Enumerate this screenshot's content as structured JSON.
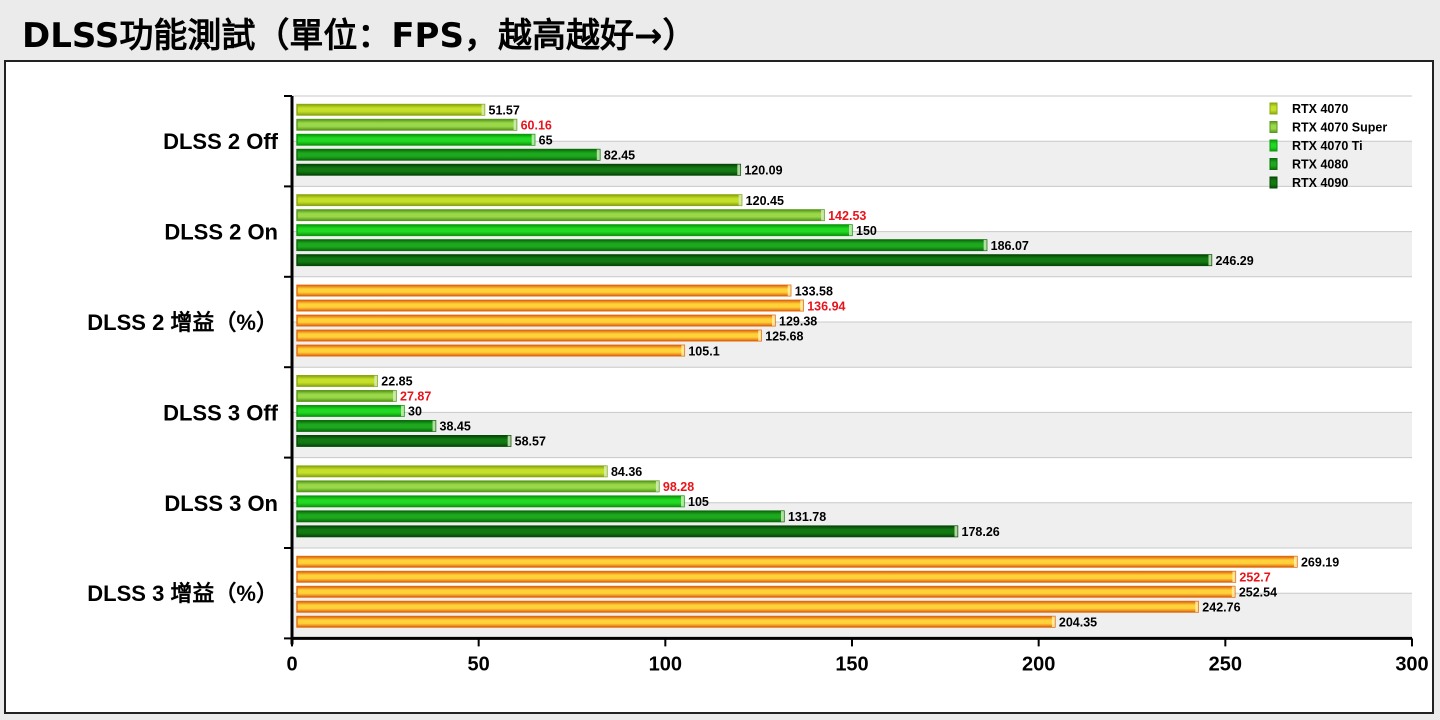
{
  "header": {
    "title": "DLSS功能測試（單位：FPS，越高越好→）"
  },
  "chart_data": {
    "type": "bar",
    "orientation": "horizontal",
    "title": "DLSS功能測試（單位：FPS，越高越好→）",
    "xlim": [
      0,
      300
    ],
    "xticks": [
      0,
      50,
      100,
      150,
      200,
      250,
      300
    ],
    "grid": "alternating horizontal bands",
    "legend_position": "top-right",
    "highlight_series": "RTX 4070 Super",
    "highlight_color": "#e8141b",
    "categories": [
      "DLSS 2 Off",
      "DLSS 2 On",
      "DLSS 2 增益（%）",
      "DLSS 3 Off",
      "DLSS 3 On",
      "DLSS 3 增益（%）"
    ],
    "gain_categories": [
      "DLSS 2 增益（%）",
      "DLSS 3 增益（%）"
    ],
    "series": [
      {
        "name": "RTX 4070",
        "color": "#c6e02a",
        "dark": "#8aa812",
        "values": [
          51.57,
          120.45,
          133.58,
          22.85,
          84.36,
          269.19
        ]
      },
      {
        "name": "RTX 4070 Super",
        "color": "#9ad84a",
        "dark": "#5a9a1c",
        "values": [
          60.16,
          142.53,
          136.94,
          27.87,
          98.28,
          252.7
        ]
      },
      {
        "name": "RTX 4070 Ti",
        "color": "#22d822",
        "dark": "#0c9a0c",
        "values": [
          65,
          150,
          129.38,
          30,
          105,
          252.54
        ]
      },
      {
        "name": "RTX 4080",
        "color": "#1ea81e",
        "dark": "#0b6e0b",
        "values": [
          82.45,
          186.07,
          125.68,
          38.45,
          131.78,
          242.76
        ]
      },
      {
        "name": "RTX 4090",
        "color": "#137a13",
        "dark": "#074a07",
        "values": [
          120.09,
          246.29,
          105.1,
          58.57,
          178.26,
          204.35
        ]
      }
    ],
    "gain_color": "#f5a81c",
    "gain_dark": "#e06a10"
  }
}
